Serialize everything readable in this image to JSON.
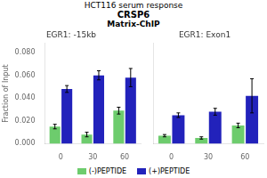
{
  "title": [
    "HCT116 serum response",
    "CRSP6",
    "Matrix-ChIP"
  ],
  "chart_data": [
    {
      "type": "bar",
      "title": "EGR1: -15kb",
      "ylabel": "Fraction of Input",
      "categories": [
        "0",
        "30",
        "60"
      ],
      "series": [
        {
          "name": "(-)PEPTIDE",
          "color": "#6dcc6d",
          "values": [
            0.015,
            0.008,
            0.029
          ],
          "errors": [
            0.002,
            0.002,
            0.003
          ]
        },
        {
          "name": "(+)PEPTIDE",
          "color": "#2222bb",
          "values": [
            0.048,
            0.06,
            0.058
          ],
          "errors": [
            0.003,
            0.004,
            0.008
          ]
        }
      ],
      "ylim": [
        0,
        0.088
      ],
      "yticks": [
        {
          "value": 0.0,
          "label": "0.000"
        },
        {
          "value": 0.02,
          "label": "0.020"
        },
        {
          "value": 0.04,
          "label": "0.040"
        },
        {
          "value": 0.06,
          "label": "0.060"
        },
        {
          "value": 0.08,
          "label": "0.080"
        }
      ],
      "grid": false,
      "legend": "bottom"
    },
    {
      "type": "bar",
      "title": "EGR1: Exon1",
      "categories": [
        "0",
        "30",
        "60"
      ],
      "series": [
        {
          "name": "(-)PEPTIDE",
          "color": "#6dcc6d",
          "values": [
            0.007,
            0.005,
            0.016
          ],
          "errors": [
            0.001,
            0.001,
            0.002
          ]
        },
        {
          "name": "(+)PEPTIDE",
          "color": "#2222bb",
          "values": [
            0.025,
            0.028,
            0.042
          ],
          "errors": [
            0.002,
            0.003,
            0.015
          ]
        }
      ],
      "ylim": [
        0,
        0.088
      ],
      "yticks": [
        0.0,
        0.02,
        0.04,
        0.06,
        0.08
      ],
      "grid": false,
      "tick_labels": "x"
    }
  ]
}
